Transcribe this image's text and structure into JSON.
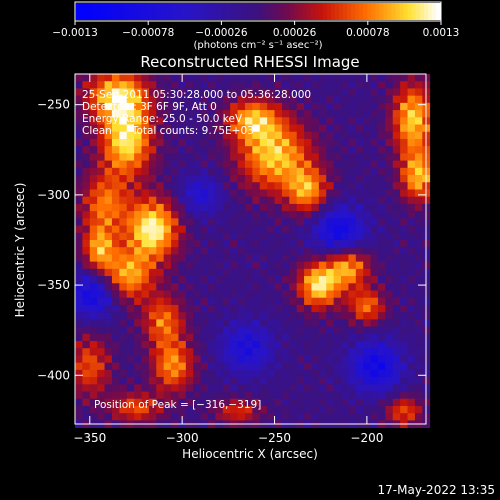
{
  "chart_data": {
    "type": "heatmap",
    "title": "Reconstructed RHESSI Image",
    "xlabel": "Heliocentric X (arcsec)",
    "ylabel": "Heliocentric Y (arcsec)",
    "xlim": [
      -358,
      -168
    ],
    "ylim": [
      -427,
      -233
    ],
    "x_ticks": [
      {
        "value": -350,
        "label": "−350"
      },
      {
        "value": -300,
        "label": "−300"
      },
      {
        "value": -250,
        "label": "−250"
      },
      {
        "value": -200,
        "label": "−200"
      }
    ],
    "y_ticks": [
      {
        "value": -250,
        "label": "−250"
      },
      {
        "value": -300,
        "label": "−300"
      },
      {
        "value": -350,
        "label": "−350"
      },
      {
        "value": -400,
        "label": "−400"
      }
    ],
    "colorbar": {
      "range": [
        -0.0013,
        0.0013
      ],
      "ticks": [
        {
          "value": -0.0013,
          "label": "−0.0013"
        },
        {
          "value": -0.00078,
          "label": "−0.00078"
        },
        {
          "value": -0.00026,
          "label": "−0.00026"
        },
        {
          "value": 0.00026,
          "label": "0.00026"
        },
        {
          "value": 0.00078,
          "label": "0.00078"
        },
        {
          "value": 0.0013,
          "label": "0.0013"
        }
      ],
      "unit_label": "(photons cm⁻² s⁻¹ asec⁻²)"
    },
    "annotations": {
      "time_range": "25-Sep-2011 05:30:28.000 to 05:36:28.000",
      "detectors": "Detectors: 3F 6F 9F, Att 0",
      "energy": "Energy Range: 25.0 - 50.0 keV",
      "clean": "Clean      Total counts: 9.75E+03",
      "peak": "Position of Peak = [−316,−319]"
    },
    "peak_position": [
      -316,
      -319
    ],
    "hotspots": [
      {
        "x": -335,
        "y": -245,
        "strength": 0.0011,
        "sx": 12,
        "sy": 10
      },
      {
        "x": -330,
        "y": -270,
        "strength": 0.0012,
        "sx": 10,
        "sy": 14
      },
      {
        "x": -316,
        "y": -319,
        "strength": 0.0013,
        "sx": 10,
        "sy": 12
      },
      {
        "x": -342,
        "y": -305,
        "strength": 0.0008,
        "sx": 9,
        "sy": 12
      },
      {
        "x": -330,
        "y": -345,
        "strength": 0.001,
        "sx": 10,
        "sy": 10
      },
      {
        "x": -310,
        "y": -370,
        "strength": 0.0008,
        "sx": 8,
        "sy": 10
      },
      {
        "x": -350,
        "y": -395,
        "strength": 0.0007,
        "sx": 8,
        "sy": 12
      },
      {
        "x": -325,
        "y": -418,
        "strength": 0.0007,
        "sx": 10,
        "sy": 6
      },
      {
        "x": -250,
        "y": -278,
        "strength": 0.0011,
        "sx": 14,
        "sy": 14
      },
      {
        "x": -262,
        "y": -258,
        "strength": 0.0009,
        "sx": 10,
        "sy": 8
      },
      {
        "x": -232,
        "y": -298,
        "strength": 0.0009,
        "sx": 8,
        "sy": 9
      },
      {
        "x": -226,
        "y": -350,
        "strength": 0.0012,
        "sx": 8,
        "sy": 9
      },
      {
        "x": -210,
        "y": -340,
        "strength": 0.001,
        "sx": 8,
        "sy": 8
      },
      {
        "x": -200,
        "y": -362,
        "strength": 0.0008,
        "sx": 7,
        "sy": 7
      },
      {
        "x": -175,
        "y": -258,
        "strength": 0.0011,
        "sx": 8,
        "sy": 14
      },
      {
        "x": -172,
        "y": -290,
        "strength": 0.001,
        "sx": 7,
        "sy": 10
      },
      {
        "x": -180,
        "y": -420,
        "strength": 0.0007,
        "sx": 7,
        "sy": 6
      },
      {
        "x": -270,
        "y": -420,
        "strength": 0.0006,
        "sx": 9,
        "sy": 5
      },
      {
        "x": -305,
        "y": -395,
        "strength": 0.0009,
        "sx": 8,
        "sy": 10
      },
      {
        "x": -345,
        "y": -330,
        "strength": 0.0009,
        "sx": 6,
        "sy": 9
      }
    ],
    "coldspots": [
      {
        "x": -348,
        "y": -355,
        "strength": -0.0009,
        "sx": 9,
        "sy": 9
      },
      {
        "x": -215,
        "y": -320,
        "strength": -0.0009,
        "sx": 10,
        "sy": 10
      },
      {
        "x": -265,
        "y": -385,
        "strength": -0.0007,
        "sx": 10,
        "sy": 10
      },
      {
        "x": -195,
        "y": -395,
        "strength": -0.0009,
        "sx": 10,
        "sy": 10
      },
      {
        "x": -290,
        "y": -300,
        "strength": -0.0006,
        "sx": 8,
        "sy": 8
      }
    ],
    "colors": {
      "background": "#000000",
      "text": "#ffffff",
      "negative": "#1a1aff",
      "zero": "#3a127a",
      "positive_mid": "#e03000",
      "positive_max": "#ffffff"
    }
  },
  "footer": {
    "timestamp": "17-May-2022 13:35"
  }
}
